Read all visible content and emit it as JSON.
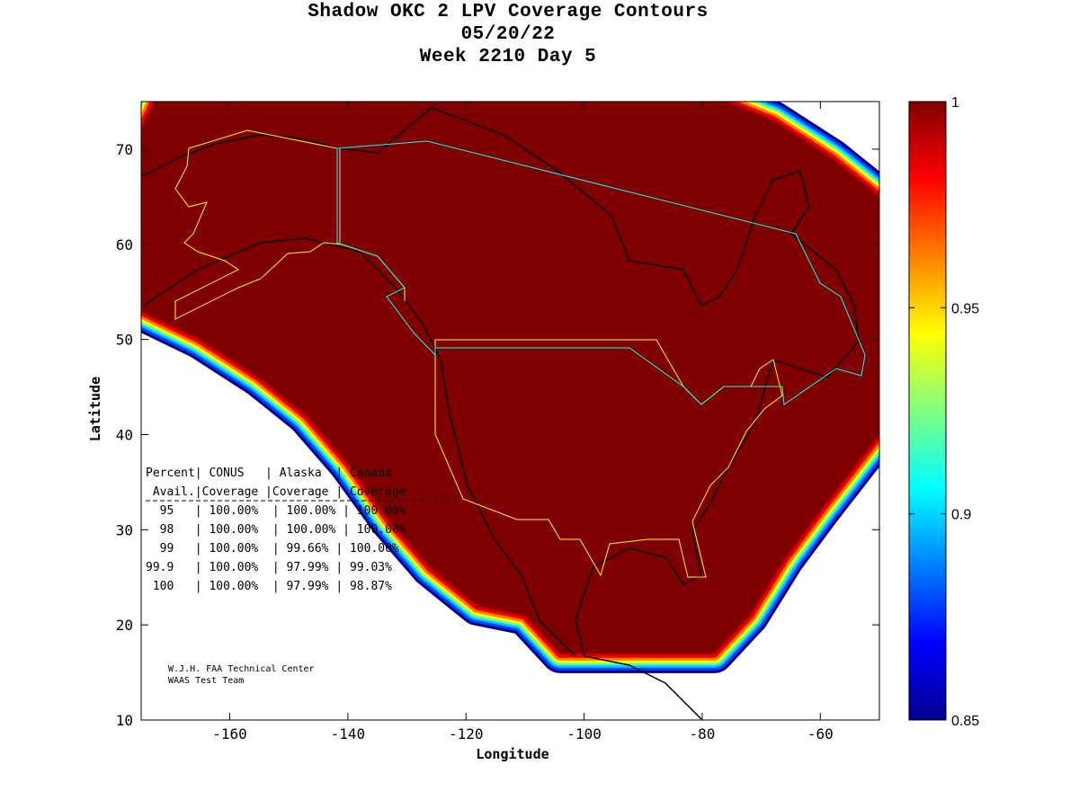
{
  "title": {
    "line1": "Shadow OKC 2 LPV Coverage Contours",
    "line2": "05/20/22",
    "line3": "Week 2210 Day 5"
  },
  "chart_data": {
    "type": "heatmap",
    "title": "Shadow OKC 2 LPV Coverage Contours",
    "xlabel": "Longitude",
    "ylabel": "Latitude",
    "xlim": [
      -175,
      -50
    ],
    "ylim": [
      10,
      75
    ],
    "x_ticks": [
      "-160",
      "-140",
      "-120",
      "-100",
      "-80",
      "-60"
    ],
    "x_tick_values": [
      -160,
      -140,
      -120,
      -100,
      -80,
      -60
    ],
    "y_ticks": [
      "10",
      "20",
      "30",
      "40",
      "50",
      "60",
      "70"
    ],
    "y_tick_values": [
      10,
      20,
      30,
      40,
      50,
      60,
      70
    ],
    "colorbar": {
      "range": [
        0.85,
        1
      ],
      "ticks": [
        "0.85",
        "0.9",
        "0.95",
        "1"
      ],
      "tick_values": [
        0.85,
        0.9,
        0.95,
        1
      ],
      "colormap": "jet"
    }
  },
  "table": {
    "header1": "Percent| CONUS   | Alaska  | Canada",
    "header2": " Avail.|Coverage |Coverage | Coverage",
    "rows": [
      "  95   | 100.00%  | 100.00% | 100.00%",
      "  98   | 100.00%  | 100.00% | 100.00%",
      "  99   | 100.00%  | 99.66% | 100.00%",
      "99.9   | 100.00%  | 97.99% | 99.03%",
      " 100   | 100.00%  | 97.99% | 98.87%"
    ]
  },
  "credits": {
    "line1": "W.J.H. FAA Technical Center",
    "line2": "WAAS Test Team"
  }
}
